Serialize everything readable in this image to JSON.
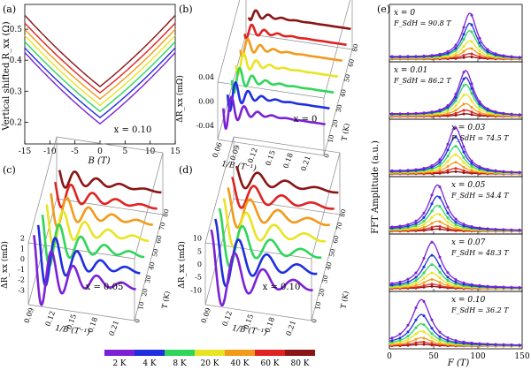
{
  "temperature_legend": {
    "labels": [
      "2 K",
      "4 K",
      "8 K",
      "20 K",
      "40 K",
      "60 K",
      "80 K"
    ],
    "colors": [
      "#7b22d6",
      "#1f2fe0",
      "#2fd65a",
      "#e9e423",
      "#f29a1a",
      "#e02222",
      "#8b1414"
    ]
  },
  "chart_data": [
    {
      "panel": "(a)",
      "type": "line",
      "xlabel": "B (T)",
      "ylabel": "Vertical shifted R_xx (Ω)",
      "annotation": "x = 0.10",
      "xlim": [
        -15,
        15
      ],
      "ylim": [
        0.13,
        0.58
      ],
      "xticks": [
        "-15",
        "-10",
        "-5",
        "0",
        "5",
        "10",
        "15"
      ],
      "yticks": [
        "0.2",
        "0.3",
        "0.4",
        "0.5"
      ],
      "series": [
        {
          "name": "2 K",
          "R0": 0.195,
          "R15": 0.425
        },
        {
          "name": "4 K",
          "R0": 0.215,
          "R15": 0.44
        },
        {
          "name": "8 K",
          "R0": 0.235,
          "R15": 0.46
        },
        {
          "name": "20 K",
          "R0": 0.255,
          "R15": 0.48
        },
        {
          "name": "40 K",
          "R0": 0.275,
          "R15": 0.5
        },
        {
          "name": "60 K",
          "R0": 0.295,
          "R15": 0.52
        },
        {
          "name": "80 K",
          "R0": 0.315,
          "R15": 0.545
        }
      ]
    },
    {
      "panel": "(b)",
      "type": "line",
      "annotation": "x = 0",
      "xlabel": "1/B (T⁻¹)",
      "zlabel": "ΔR_xx (mΩ)",
      "depth_label": "T (K)",
      "xticks": [
        "0.06",
        "0.09",
        "0.12",
        "0.15",
        "0.18",
        "0.21"
      ],
      "zticks": [
        "0.04",
        "0.00",
        "-0.04"
      ],
      "depth_ticks": [
        "0",
        "10",
        "20",
        "30",
        "40",
        "50",
        "60",
        "80"
      ]
    },
    {
      "panel": "(c)",
      "type": "line",
      "annotation": "x = 0.05",
      "xlabel": "1/B (T⁻¹)",
      "zlabel": "ΔR_xx (mΩ)",
      "depth_label": "T (K)",
      "xticks": [
        "0.09",
        "0.12",
        "0.15",
        "0.18",
        "0.21"
      ],
      "zticks": [
        "2",
        "1",
        "0",
        "-1",
        "-2",
        "-3"
      ],
      "depth_ticks": [
        "0",
        "10",
        "20",
        "30",
        "40",
        "50",
        "60",
        "70",
        "80"
      ]
    },
    {
      "panel": "(d)",
      "type": "line",
      "annotation": "x = 0.10",
      "xlabel": "1/B (T⁻¹)",
      "zlabel": "ΔR_xx (mΩ)",
      "depth_label": "T (K)",
      "xticks": [
        "0.09",
        "0.12",
        "0.15",
        "0.18",
        "0.21"
      ],
      "zticks": [
        "10",
        "5",
        "0",
        "-5",
        "-10"
      ],
      "depth_ticks": [
        "0",
        "10",
        "20",
        "30",
        "40",
        "50",
        "60",
        "70",
        "80"
      ]
    },
    {
      "panel": "(e)",
      "type": "line",
      "xlabel": "F (T)",
      "ylabel": "FFT Amplitude (a.u.)",
      "xlim": [
        0,
        150
      ],
      "xticks": [
        "0",
        "50",
        "100",
        "150"
      ],
      "subplots": [
        {
          "x_label": "x = 0",
          "F_label": "F_SdH = 90.8 T",
          "F": 90.8,
          "amplitudes": [
            1.0,
            0.78,
            0.62,
            0.4,
            0.24,
            0.12,
            0.05
          ]
        },
        {
          "x_label": "x = 0.01",
          "F_label": "F_SdH = 86.2 T",
          "F": 86.2,
          "amplitudes": [
            1.0,
            0.85,
            0.7,
            0.48,
            0.28,
            0.14,
            0.06
          ]
        },
        {
          "x_label": "x = 0.03",
          "F_label": "F_SdH = 74.5 T",
          "F": 74.5,
          "amplitudes": [
            1.0,
            0.8,
            0.6,
            0.42,
            0.25,
            0.12,
            0.05
          ]
        },
        {
          "x_label": "x = 0.05",
          "F_label": "F_SdH = 54.4 T",
          "F": 54.4,
          "amplitudes": [
            1.0,
            0.76,
            0.56,
            0.38,
            0.22,
            0.11,
            0.05
          ]
        },
        {
          "x_label": "x = 0.07",
          "F_label": "F_SdH = 48.3 T",
          "F": 48.3,
          "amplitudes": [
            1.0,
            0.72,
            0.52,
            0.34,
            0.2,
            0.1,
            0.05
          ]
        },
        {
          "x_label": "x = 0.10",
          "F_label": "F_SdH = 36.2 T",
          "F": 36.2,
          "amplitudes": [
            1.0,
            0.68,
            0.48,
            0.32,
            0.18,
            0.09,
            0.04
          ]
        }
      ]
    }
  ]
}
